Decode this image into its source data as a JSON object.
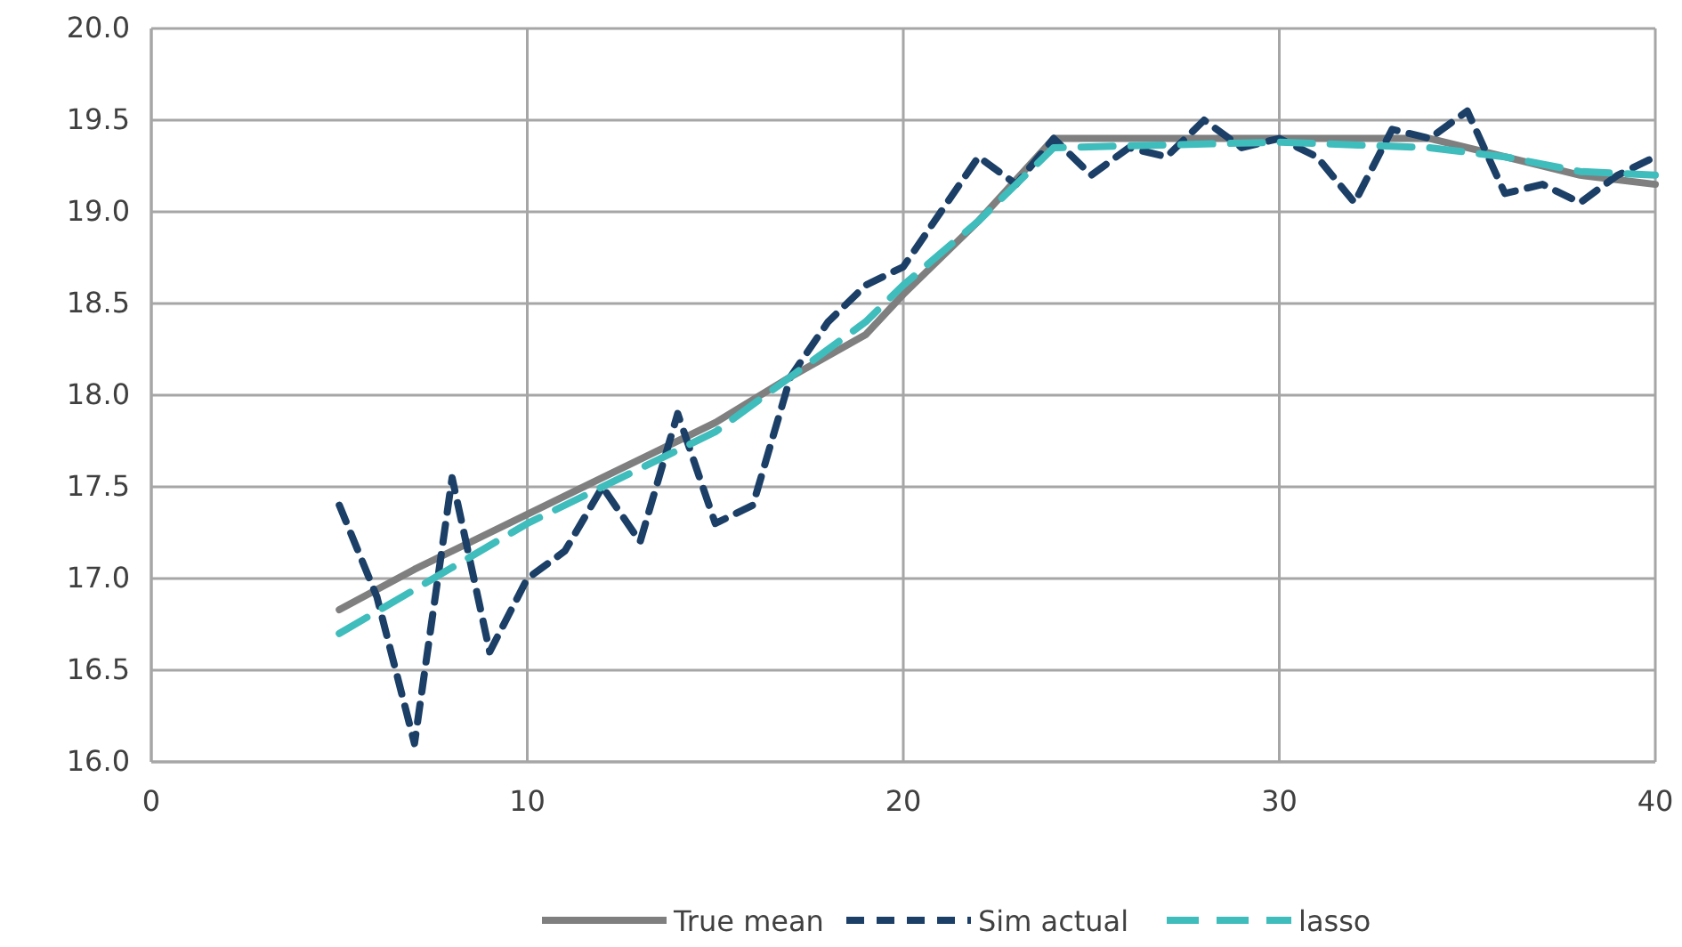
{
  "chart_data": {
    "type": "line",
    "xlim": [
      0,
      40
    ],
    "xticks": [
      0,
      10,
      20,
      30,
      40
    ],
    "ylim": [
      16,
      20
    ],
    "yticks": [
      {
        "value": 16,
        "label": "16.0"
      },
      {
        "value": 16.5,
        "label": "16.5"
      },
      {
        "value": 17,
        "label": "17.0"
      },
      {
        "value": 17.5,
        "label": "17.5"
      },
      {
        "value": 18,
        "label": "18.0"
      },
      {
        "value": 18.5,
        "label": "18.5"
      },
      {
        "value": 19,
        "label": "19.0"
      },
      {
        "value": 19.5,
        "label": "19.5"
      },
      {
        "value": 20,
        "label": "20.0"
      }
    ],
    "grid": true,
    "legend": "bottom",
    "marker": "none",
    "series": [
      {
        "name": "True mean",
        "color": "#7f7f7f",
        "line_style": "solid",
        "x": [
          5,
          7,
          10,
          12,
          15,
          17,
          19,
          20,
          22,
          24,
          34,
          36,
          38,
          40
        ],
        "values": [
          16.83,
          17.05,
          17.35,
          17.55,
          17.85,
          18.1,
          18.33,
          18.55,
          18.95,
          19.4,
          19.4,
          19.3,
          19.2,
          19.15
        ]
      },
      {
        "name": "Sim actual",
        "color": "#1b3f66",
        "line_style": "dashed",
        "x": [
          5,
          6,
          7,
          8,
          9,
          10,
          11,
          12,
          13,
          14,
          15,
          16,
          17,
          18,
          19,
          20,
          21,
          22,
          23,
          24,
          25,
          26,
          27,
          28,
          29,
          30,
          31,
          32,
          33,
          34,
          35,
          36,
          37,
          38,
          39,
          40
        ],
        "values": [
          17.4,
          16.9,
          16.1,
          17.55,
          16.6,
          17.0,
          17.15,
          17.5,
          17.2,
          17.9,
          17.3,
          17.4,
          18.1,
          18.4,
          18.6,
          18.7,
          19.0,
          19.3,
          19.15,
          19.4,
          19.2,
          19.35,
          19.3,
          19.5,
          19.35,
          19.4,
          19.3,
          19.05,
          19.45,
          19.4,
          19.55,
          19.1,
          19.15,
          19.05,
          19.2,
          19.3
        ]
      },
      {
        "name": "lasso",
        "color": "#3fbcbc",
        "line_style": "dashed",
        "x": [
          5,
          10,
          15,
          17,
          19,
          20,
          22,
          24,
          30,
          34,
          36,
          38,
          40
        ],
        "values": [
          16.7,
          17.3,
          17.8,
          18.1,
          18.4,
          18.6,
          18.95,
          19.35,
          19.38,
          19.35,
          19.3,
          19.22,
          19.2
        ]
      }
    ]
  }
}
